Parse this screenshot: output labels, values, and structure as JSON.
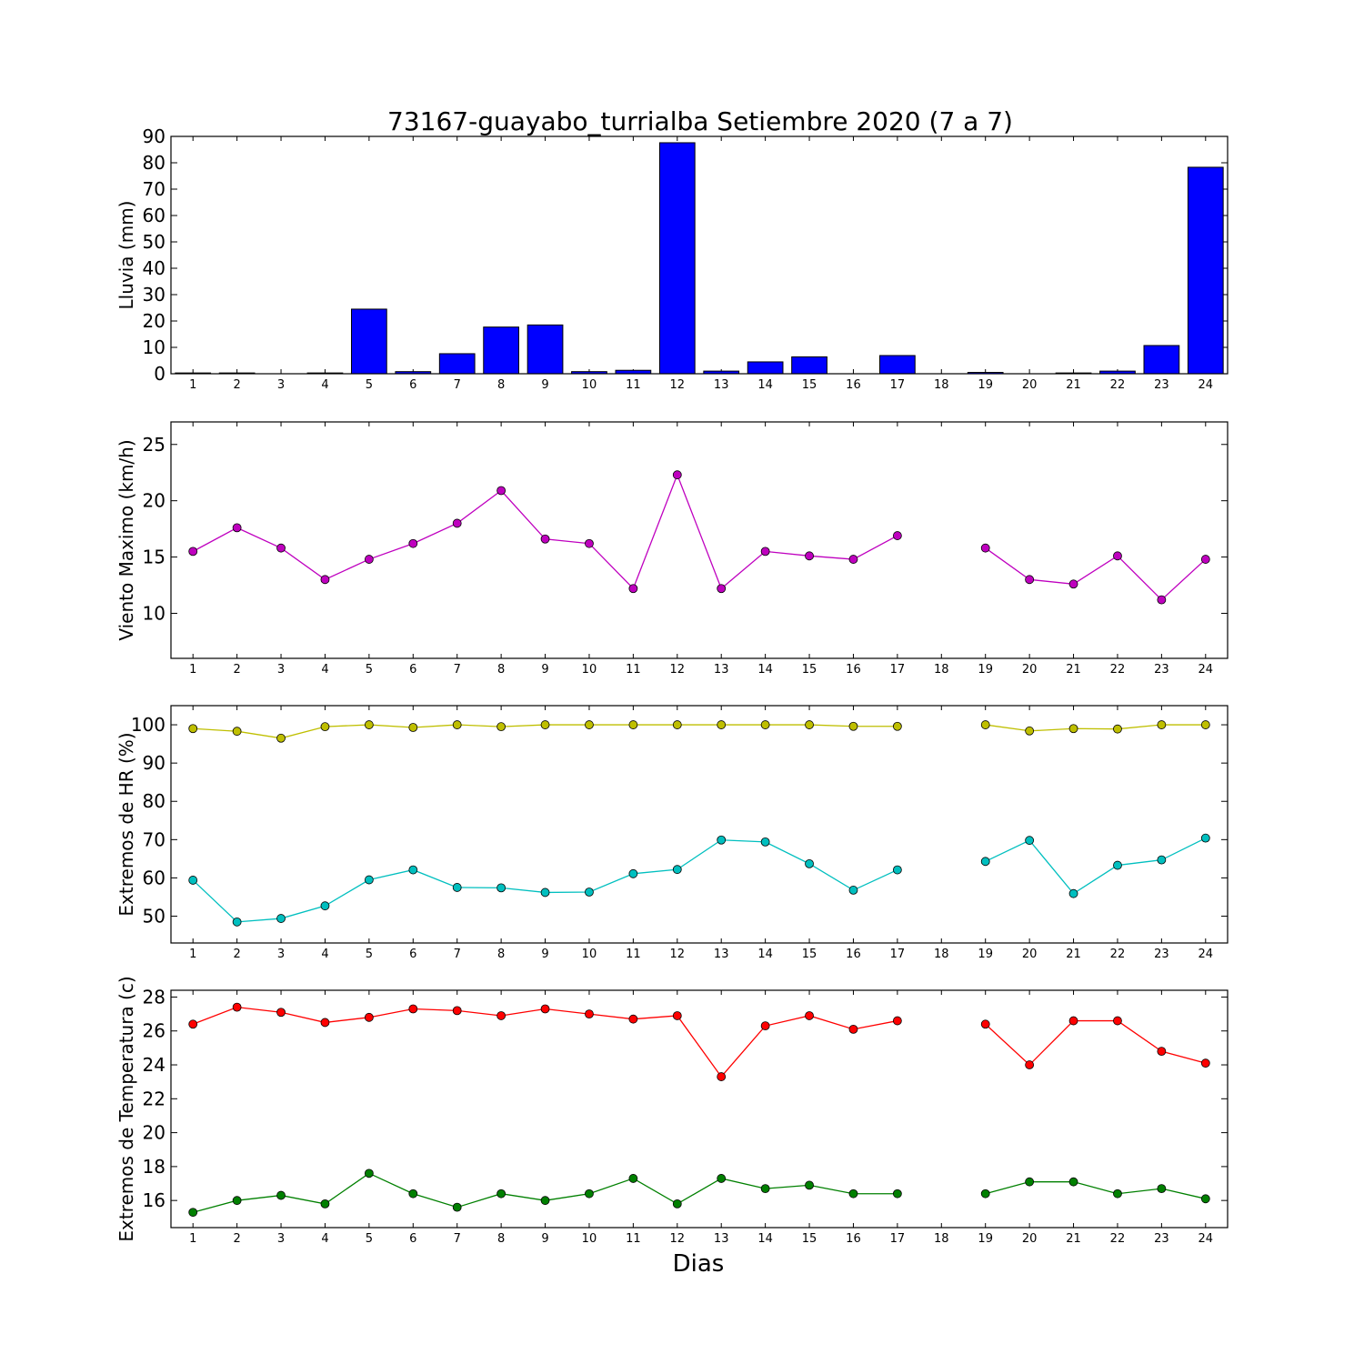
{
  "title": "73167-guayabo_turrialba Setiembre 2020  (7 a 7)",
  "xlabel": "Dias",
  "chart_data": [
    {
      "type": "bar",
      "ylabel": "Lluvia (mm)",
      "ylim": [
        0,
        90
      ],
      "yticks": [
        0,
        10,
        20,
        30,
        40,
        50,
        60,
        70,
        80,
        90
      ],
      "categories": [
        "1",
        "2",
        "3",
        "4",
        "5",
        "6",
        "7",
        "8",
        "9",
        "10",
        "11",
        "12",
        "13",
        "14",
        "15",
        "16",
        "17",
        "18",
        "19",
        "20",
        "21",
        "22",
        "23",
        "24"
      ],
      "color": "#0000ff",
      "values": [
        0.3,
        0.3,
        0,
        0.3,
        24.5,
        0.8,
        7.6,
        17.7,
        18.5,
        0.8,
        1.3,
        87.6,
        1.0,
        4.5,
        6.4,
        0,
        6.9,
        0,
        0.5,
        0,
        0.3,
        1.0,
        10.7,
        78.3
      ]
    },
    {
      "type": "line",
      "ylabel": "Viento Maximo (km/h)",
      "ylim": [
        6,
        27
      ],
      "yticks": [
        10,
        15,
        20,
        25
      ],
      "x": [
        "1",
        "2",
        "3",
        "4",
        "5",
        "6",
        "7",
        "8",
        "9",
        "10",
        "11",
        "12",
        "13",
        "14",
        "15",
        "16",
        "17",
        "18",
        "19",
        "20",
        "21",
        "22",
        "23",
        "24"
      ],
      "series": [
        {
          "color": "#bf00bf",
          "values": [
            15.5,
            17.6,
            15.8,
            13.0,
            14.8,
            16.2,
            18.0,
            20.9,
            16.6,
            16.2,
            12.2,
            22.3,
            12.2,
            15.5,
            15.1,
            14.8,
            16.9,
            null,
            15.8,
            13.0,
            12.6,
            15.1,
            11.2,
            14.8
          ]
        }
      ]
    },
    {
      "type": "line",
      "ylabel": "Extremos de HR (%)",
      "ylim": [
        43,
        105
      ],
      "yticks": [
        50,
        60,
        70,
        80,
        90,
        100
      ],
      "x": [
        "1",
        "2",
        "3",
        "4",
        "5",
        "6",
        "7",
        "8",
        "9",
        "10",
        "11",
        "12",
        "13",
        "14",
        "15",
        "16",
        "17",
        "18",
        "19",
        "20",
        "21",
        "22",
        "23",
        "24"
      ],
      "series": [
        {
          "color": "#bfbf00",
          "values": [
            99.0,
            98.3,
            96.5,
            99.5,
            100,
            99.3,
            100,
            99.5,
            100,
            100,
            100,
            100,
            100,
            100,
            100,
            99.6,
            99.6,
            null,
            100,
            98.4,
            99.0,
            98.9,
            100,
            100
          ]
        },
        {
          "color": "#00bfbf",
          "values": [
            59.4,
            48.5,
            49.4,
            52.7,
            59.5,
            62.1,
            57.5,
            57.4,
            56.2,
            56.3,
            61.1,
            62.2,
            69.9,
            69.4,
            63.7,
            56.8,
            62.1,
            null,
            64.3,
            69.8,
            55.9,
            63.3,
            64.7,
            70.4
          ]
        }
      ]
    },
    {
      "type": "line",
      "ylabel": "Extremos de Temperatura (c)",
      "ylim": [
        14.4,
        28.4
      ],
      "yticks": [
        16,
        18,
        20,
        22,
        24,
        26,
        28
      ],
      "x": [
        "1",
        "2",
        "3",
        "4",
        "5",
        "6",
        "7",
        "8",
        "9",
        "10",
        "11",
        "12",
        "13",
        "14",
        "15",
        "16",
        "17",
        "18",
        "19",
        "20",
        "21",
        "22",
        "23",
        "24"
      ],
      "series": [
        {
          "color": "#ff0000",
          "values": [
            26.4,
            27.4,
            27.1,
            26.5,
            26.8,
            27.3,
            27.2,
            26.9,
            27.3,
            27.0,
            26.7,
            26.9,
            23.3,
            26.3,
            26.9,
            26.1,
            26.6,
            null,
            26.4,
            24.0,
            26.6,
            26.6,
            24.8,
            24.1
          ]
        },
        {
          "color": "#008000",
          "values": [
            15.3,
            16.0,
            16.3,
            15.8,
            17.6,
            16.4,
            15.6,
            16.4,
            16.0,
            16.4,
            17.3,
            15.8,
            17.3,
            16.7,
            16.9,
            16.4,
            16.4,
            null,
            16.4,
            17.1,
            17.1,
            16.4,
            16.7,
            16.1
          ]
        }
      ]
    }
  ]
}
